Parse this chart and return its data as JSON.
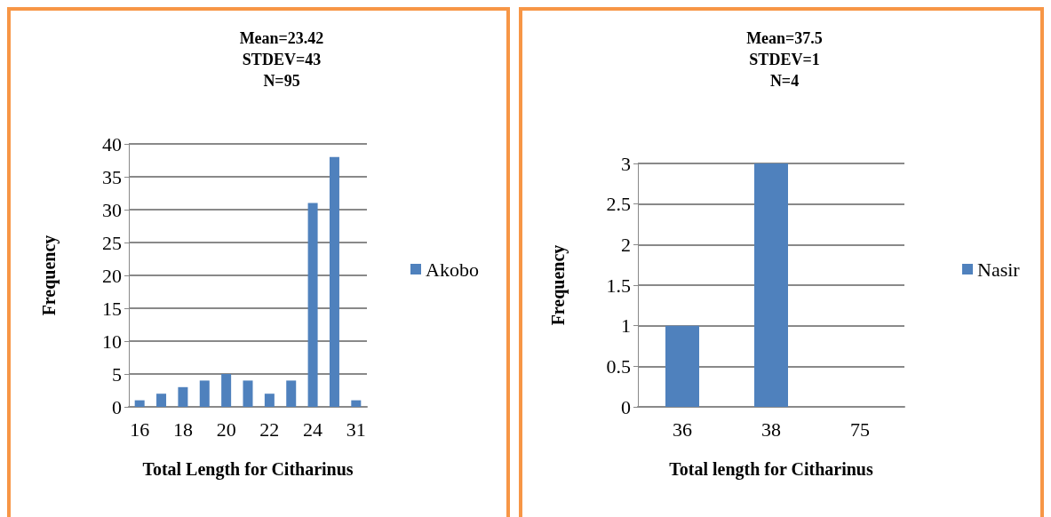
{
  "chart_data": [
    {
      "type": "bar",
      "title": "Mean=23.42\nSTDEV=43\nN=95",
      "xlabel": "Total Length for Citharinus",
      "ylabel": "Frequency",
      "categories": [
        "16",
        null,
        "18",
        null,
        "20",
        null,
        "22",
        null,
        "24",
        null,
        "31"
      ],
      "series": [
        {
          "name": "Akobo",
          "color": "#4f81bd",
          "values": [
            1,
            2,
            3,
            4,
            5,
            4,
            2,
            4,
            31,
            38,
            1
          ]
        }
      ],
      "ylim": [
        0,
        40
      ],
      "yticks": [
        0,
        5,
        10,
        15,
        20,
        25,
        30,
        35,
        40
      ],
      "grid": "y",
      "legend": "right"
    },
    {
      "type": "bar",
      "title": "Mean=37.5\nSTDEV=1\nN=4",
      "xlabel": "Total length for Citharinus",
      "ylabel": "Frequency",
      "categories": [
        "36",
        "38",
        "75"
      ],
      "series": [
        {
          "name": "Nasir",
          "color": "#4f81bd",
          "values": [
            1,
            3,
            0
          ]
        }
      ],
      "ylim": [
        0,
        3
      ],
      "yticks": [
        0,
        0.5,
        1,
        1.5,
        2,
        2.5,
        3
      ],
      "grid": "y",
      "legend": "right"
    }
  ]
}
